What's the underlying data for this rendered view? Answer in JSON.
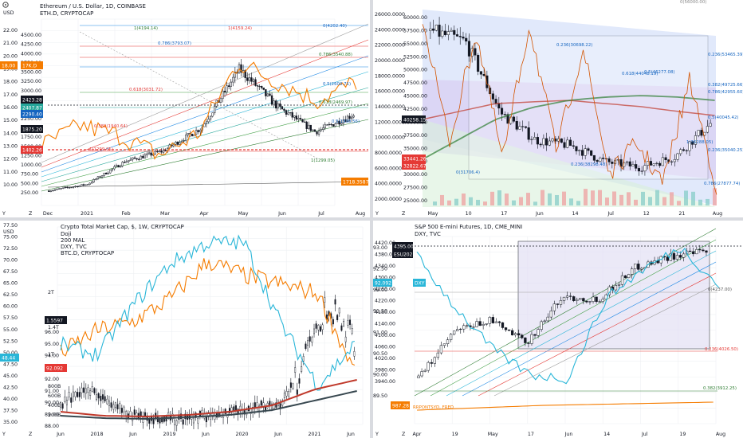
{
  "colors": {
    "ema_orange": "#f57c00",
    "cyan": "#29b6d8",
    "green": "#2e7d32",
    "red": "#e53935",
    "navy_label": "#1a237e",
    "teal_label": "#26a69a",
    "candle": "#131722",
    "grid": "#eef0f3"
  },
  "icons": [
    "gear-icon",
    "z-letter-icon",
    "y-letter-icon",
    "scale-icon"
  ],
  "charts": [
    {
      "id": "eth",
      "title": "Ethereum / U.S. Dollar, 1D, COINBASE",
      "subtitle": "ETH.D, CRYPTOCAP",
      "unit_left": "USD",
      "left_axis": [
        "22.00",
        "21.00",
        "20.00",
        "19.00",
        "18.00",
        "17.00",
        "16.00",
        "15.00",
        "14.00",
        "13.00",
        "12.00",
        "11.00",
        "10.00"
      ],
      "right_axis": [
        "4500.00",
        "4250.00",
        "4000.00",
        "3750.00",
        "3500.00",
        "3250.00",
        "3000.00",
        "2750.00",
        "2500.00",
        "2250.00",
        "2000.00",
        "1750.00",
        "1500.00",
        "1250.00",
        "1000.00",
        "750.00",
        "500.00",
        "250.00"
      ],
      "x_axis": [
        "Dec",
        "2021",
        "Feb",
        "Mar",
        "Apr",
        "May",
        "Jun",
        "Jul",
        "Aug"
      ],
      "price_tags": [
        {
          "text": "18.00",
          "color": "#f57c00"
        },
        {
          "text": "17K.D",
          "color": "#f57c00"
        },
        {
          "text": "2423.28",
          "color": "#131722"
        },
        {
          "text": "2407.87",
          "color": "#26a69a"
        },
        {
          "text": "2290.40",
          "color": "#1565c0"
        },
        {
          "text": "1875.20",
          "color": "#131722"
        },
        {
          "text": "1402.26",
          "color": "#e53935"
        }
      ],
      "fib_labels": [
        "0(4202.40)",
        "1(4194.14)",
        "1(4159.24)",
        "0.786(3793.07)",
        "0.786(3540.88)",
        "0.618(3031.72)",
        "0.5(2600.71)",
        "0.618(2469.97)",
        "0.382(1940.64)",
        "0.5(1998.56)",
        "1(1299.05)",
        "1(1299.05)"
      ],
      "bottom_tag": "1718.3587"
    },
    {
      "id": "btc",
      "title": "",
      "subtitle": "",
      "left_axis": [
        "60000.00",
        "57500.00",
        "55000.00",
        "52500.00",
        "50000.00",
        "47500.00",
        "45000.00",
        "42500.00",
        "40000.00",
        "37500.00",
        "35000.00",
        "32500.00",
        "30000.00",
        "27500.00",
        "25000.00"
      ],
      "right_axis": [
        "26000.0000",
        "24000.0000",
        "22000.0000",
        "20000.0000",
        "18000.0000",
        "16000.0000",
        "14000.0000",
        "12000.0000",
        "10000.0000",
        "8000.0000",
        "6000.0000",
        "4000.0000",
        "2000.0000"
      ],
      "x_axis": [
        "May",
        "10",
        "17",
        "Jun",
        "14",
        "Jul",
        "12",
        "21",
        "Aug"
      ],
      "price_tags": [
        {
          "text": "40258.15",
          "color": "#131722"
        },
        {
          "text": "33441.26",
          "color": "#e53935"
        },
        {
          "text": "32822.67",
          "color": "#e53935"
        }
      ],
      "fib_labels": [
        "0.236(53465.39)",
        "0.382(49725.66)",
        "0.5(46277.08)",
        "0.618(44048.19)",
        "0.786(42955.60)",
        "0.5(40045.42)",
        "1(36288.05)",
        "0.236(38298.48)",
        "0.236(35040.25)",
        "0.786(27877.74)",
        "0.236(30698.22)",
        "0(31706.4)"
      ],
      "top_label": "0(56000.00)"
    },
    {
      "id": "total",
      "title": "Crypto Total Market Cap, $, 1W, CRYPTOCAP",
      "lines": [
        "Doji",
        "200 MAL",
        "DXY, TVC",
        "BTC.D, CRYPTOCAP"
      ],
      "unit_left": "USD",
      "left_axis": [
        "77.50",
        "75.00",
        "72.50",
        "70.00",
        "67.50",
        "65.00",
        "62.50",
        "60.00",
        "57.50",
        "55.00",
        "52.50",
        "50.00",
        "47.50",
        "45.00",
        "42.50",
        "40.00",
        "37.50",
        "35.00"
      ],
      "right_axis": [
        "96.00",
        "95.00",
        "94.00",
        "93.00",
        "92.00",
        "91.00",
        "90.00",
        "89.00",
        "88.00"
      ],
      "cap_axis": [
        "2T",
        "1T",
        "800B",
        "600B",
        "400B",
        "200B",
        "1.4T"
      ],
      "x_axis": [
        "Jun",
        "2018",
        "Jun",
        "2019",
        "Jun",
        "2020",
        "Jun",
        "2021",
        "Jun"
      ],
      "price_tags": [
        {
          "text": "1.5597",
          "color": "#131722"
        },
        {
          "text": "48.44",
          "color": "#29b6d8"
        },
        {
          "text": "92.092",
          "color": "#e53935"
        }
      ]
    },
    {
      "id": "spx",
      "title": "S&P 500 E-mini Futures, 1D, CME_MINI",
      "subtitle": "DXY, TVC",
      "right_axis": [
        "4420.00",
        "4380.00",
        "4340.00",
        "4300.00",
        "4260.00",
        "4220.00",
        "4180.00",
        "4140.00",
        "4100.00",
        "4060.00",
        "4020.00",
        "3980.00",
        "3940.00"
      ],
      "left_axis": [
        "93.00",
        "92.50",
        "92.00",
        "91.50",
        "91.00",
        "90.50",
        "90.00",
        "89.50"
      ],
      "x_axis": [
        "Apr",
        "19",
        "May",
        "17",
        "Jun",
        "14",
        "Jul",
        "19",
        "Aug"
      ],
      "price_tags": [
        {
          "text": "4395.00",
          "color": "#131722"
        },
        {
          "text": "ESU2021",
          "color": "#131722"
        },
        {
          "text": "DXY",
          "color": "#29b6d8"
        },
        {
          "text": "92.092",
          "color": "#29b6d8"
        },
        {
          "text": "987.28",
          "color": "#f57c00"
        }
      ],
      "fib_labels": [
        "0(4237.00)",
        "0.236(4026.50)",
        "0.382(3912.25)"
      ],
      "bottom_label": "RRPONTSYD, FRED"
    }
  ],
  "chart_data": [
    {
      "type": "line",
      "title": "Ethereum / U.S. Dollar, 1D, COINBASE",
      "x": [
        "Dec",
        "2021",
        "Feb",
        "Mar",
        "Apr",
        "May",
        "Jun",
        "Jul",
        "Aug"
      ],
      "series": [
        {
          "name": "ETH/USD",
          "values": [
            600,
            750,
            1300,
            1550,
            2100,
            3500,
            2600,
            2000,
            2420
          ]
        },
        {
          "name": "ETH.D, CRYPTOCAP",
          "values": [
            13.0,
            14.6,
            13.8,
            12.3,
            14.0,
            19.5,
            18.0,
            16.5,
            18.0
          ]
        }
      ],
      "ylim": [
        250,
        4500
      ]
    },
    {
      "type": "line",
      "x": [
        "May",
        "10",
        "17",
        "Jun",
        "14",
        "Jul",
        "12",
        "21",
        "Aug"
      ],
      "series": [
        {
          "values": [
            57000,
            55000,
            42000,
            37000,
            36000,
            33000,
            32000,
            34000,
            40000
          ]
        }
      ],
      "ylim": [
        25000,
        60000
      ]
    },
    {
      "type": "line",
      "title": "Crypto Total Market Cap, $, 1W, CRYPTOCAP",
      "x": [
        "Jun",
        "2018",
        "Jun",
        "2019",
        "Jun",
        "2020",
        "Jun",
        "2021",
        "Jun"
      ],
      "series": [
        {
          "name": "BTC.D, CRYPTOCAP",
          "values": [
            50,
            55,
            57,
            62,
            70,
            67,
            65,
            63,
            46
          ]
        },
        {
          "name": "DXY, TVC",
          "values": [
            92,
            91.5,
            94,
            96,
            97,
            97,
            93,
            90,
            92
          ]
        }
      ],
      "ylim": [
        35,
        77.5
      ]
    },
    {
      "type": "line",
      "title": "S&P 500 E-mini Futures, 1D, CME_MINI",
      "x": [
        "Apr",
        "19",
        "May",
        "17",
        "Jun",
        "14",
        "Jul",
        "19",
        "Aug"
      ],
      "series": [
        {
          "name": "ESU2021",
          "values": [
            3960,
            4120,
            4160,
            4080,
            4240,
            4230,
            4340,
            4380,
            4395
          ]
        },
        {
          "name": "DXY, TVC",
          "values": [
            92.8,
            91.6,
            90.6,
            90.0,
            89.9,
            91.8,
            92.5,
            93.0,
            92.1
          ]
        }
      ],
      "ylim": [
        3940,
        4420
      ]
    }
  ]
}
